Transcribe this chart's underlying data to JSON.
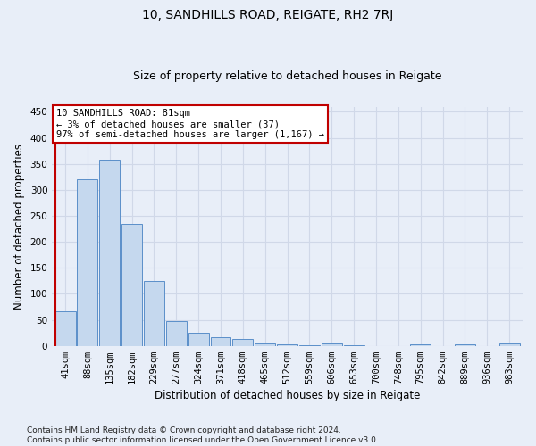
{
  "title": "10, SANDHILLS ROAD, REIGATE, RH2 7RJ",
  "subtitle": "Size of property relative to detached houses in Reigate",
  "xlabel": "Distribution of detached houses by size in Reigate",
  "ylabel": "Number of detached properties",
  "categories": [
    "41sqm",
    "88sqm",
    "135sqm",
    "182sqm",
    "229sqm",
    "277sqm",
    "324sqm",
    "371sqm",
    "418sqm",
    "465sqm",
    "512sqm",
    "559sqm",
    "606sqm",
    "653sqm",
    "700sqm",
    "748sqm",
    "795sqm",
    "842sqm",
    "889sqm",
    "936sqm",
    "983sqm"
  ],
  "values": [
    67,
    320,
    358,
    235,
    125,
    48,
    25,
    17,
    13,
    5,
    3,
    2,
    5,
    1,
    0,
    0,
    3,
    0,
    3,
    0,
    4
  ],
  "bar_color": "#c5d8ee",
  "bar_edge_color": "#5b8fc9",
  "highlight_line_color": "#c00000",
  "annotation_text": "10 SANDHILLS ROAD: 81sqm\n← 3% of detached houses are smaller (37)\n97% of semi-detached houses are larger (1,167) →",
  "annotation_box_color": "#ffffff",
  "annotation_box_edge_color": "#c00000",
  "ylim": [
    0,
    460
  ],
  "yticks": [
    0,
    50,
    100,
    150,
    200,
    250,
    300,
    350,
    400,
    450
  ],
  "footer_text": "Contains HM Land Registry data © Crown copyright and database right 2024.\nContains public sector information licensed under the Open Government Licence v3.0.",
  "background_color": "#e8eef8",
  "grid_color": "#d0d8e8",
  "title_fontsize": 10,
  "subtitle_fontsize": 9,
  "axis_label_fontsize": 8.5,
  "tick_fontsize": 7.5,
  "footer_fontsize": 6.5
}
